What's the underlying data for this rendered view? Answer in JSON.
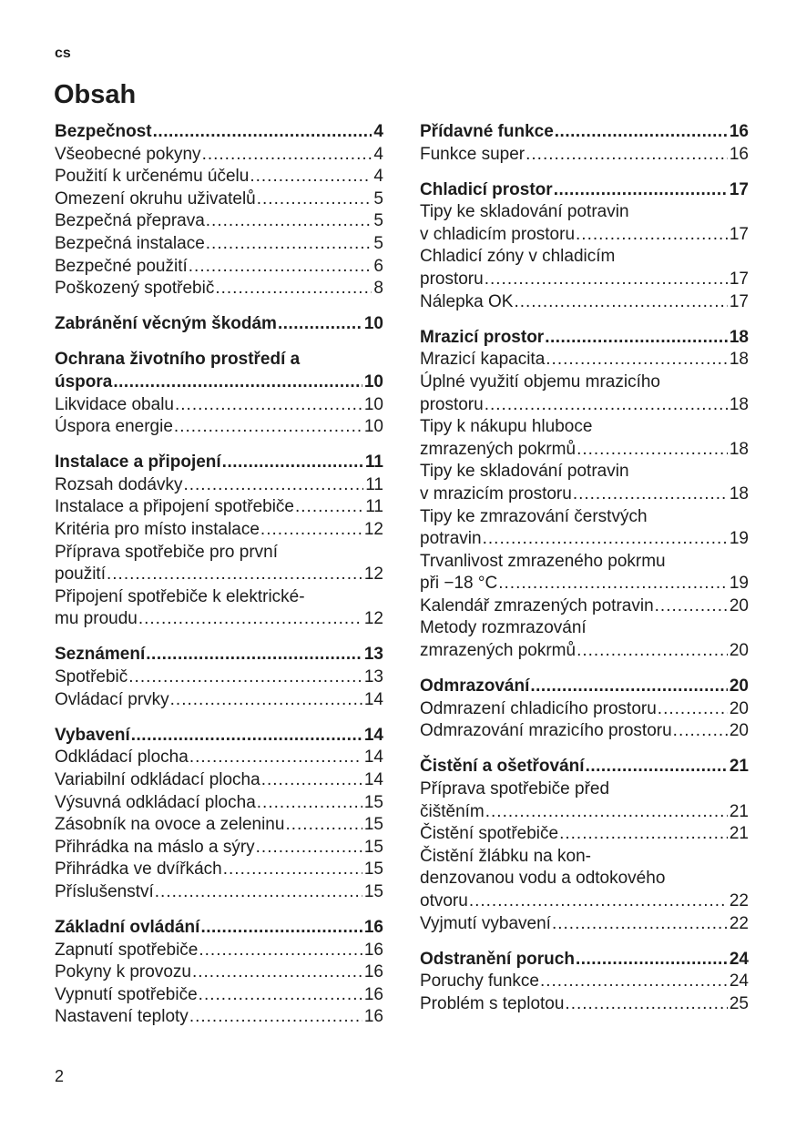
{
  "header": {
    "lang": "cs",
    "title": "Obsah"
  },
  "columns": [
    [
      {
        "heading": {
          "text": "Bezpečnost",
          "page": "4"
        },
        "items": [
          {
            "text": "Všeobecné pokyny",
            "page": "4"
          },
          {
            "text": "Použití k určenému účelu",
            "page": "4"
          },
          {
            "text": "Omezení okruhu uživatelů",
            "page": "5"
          },
          {
            "text": "Bezpečná přeprava",
            "page": "5"
          },
          {
            "text": "Bezpečná instalace",
            "page": "5"
          },
          {
            "text": "Bezpečné použití",
            "page": "6"
          },
          {
            "text": "Poškozený spotřebič",
            "page": "8"
          }
        ]
      },
      {
        "heading": {
          "text": "Zabránění věcným škodám",
          "page": "10"
        },
        "items": []
      },
      {
        "heading": {
          "text": "Ochrana životního prostředí a\núspora",
          "page": "10"
        },
        "items": [
          {
            "text": "Likvidace obalu",
            "page": "10"
          },
          {
            "text": "Úspora energie",
            "page": "10"
          }
        ]
      },
      {
        "heading": {
          "text": "Instalace a připojení",
          "page": "11"
        },
        "items": [
          {
            "text": "Rozsah dodávky",
            "page": "11"
          },
          {
            "text": "Instalace a připojení spotřebiče",
            "page": "11"
          },
          {
            "text": "Kritéria pro místo instalace",
            "page": "12"
          },
          {
            "text": "Příprava spotřebiče pro první\npoužití",
            "page": "12"
          },
          {
            "text": "Připojení spotřebiče k elektrické-\nmu proudu",
            "page": "12"
          }
        ]
      },
      {
        "heading": {
          "text": "Seznámení",
          "page": "13"
        },
        "items": [
          {
            "text": "Spotřebič",
            "page": "13"
          },
          {
            "text": "Ovládací prvky",
            "page": "14"
          }
        ]
      },
      {
        "heading": {
          "text": "Vybavení",
          "page": "14"
        },
        "items": [
          {
            "text": "Odkládací plocha",
            "page": "14"
          },
          {
            "text": "Variabilní odkládací plocha",
            "page": "14"
          },
          {
            "text": "Výsuvná odkládací plocha",
            "page": "15"
          },
          {
            "text": "Zásobník na ovoce a zeleninu",
            "page": "15"
          },
          {
            "text": "Přihrádka na máslo a sýry",
            "page": "15"
          },
          {
            "text": "Přihrádka ve dvířkách",
            "page": "15"
          },
          {
            "text": "Příslušenství",
            "page": "15"
          }
        ]
      },
      {
        "heading": {
          "text": "Základní ovládání",
          "page": "16"
        },
        "items": [
          {
            "text": "Zapnutí spotřebiče",
            "page": "16"
          },
          {
            "text": "Pokyny k provozu",
            "page": "16"
          },
          {
            "text": "Vypnutí spotřebiče",
            "page": "16"
          },
          {
            "text": "Nastavení teploty",
            "page": "16"
          }
        ]
      }
    ],
    [
      {
        "heading": {
          "text": "Přídavné funkce",
          "page": "16"
        },
        "items": [
          {
            "text": "Funkce super",
            "page": "16"
          }
        ]
      },
      {
        "heading": {
          "text": "Chladicí prostor",
          "page": "17"
        },
        "items": [
          {
            "text": "Tipy ke skladování potravin\nv chladicím prostoru",
            "page": "17"
          },
          {
            "text": "Chladicí zóny v chladicím\nprostoru",
            "page": "17"
          },
          {
            "text": "Nálepka OK",
            "page": "17"
          }
        ]
      },
      {
        "heading": {
          "text": "Mrazicí prostor",
          "page": "18"
        },
        "items": [
          {
            "text": "Mrazicí kapacita",
            "page": "18"
          },
          {
            "text": "Úplné využití objemu mrazicího\nprostoru",
            "page": "18"
          },
          {
            "text": "Tipy k nákupu hluboce\nzmrazených pokrmů",
            "page": "18"
          },
          {
            "text": "Tipy ke skladování potravin\nv mrazicím prostoru",
            "page": "18"
          },
          {
            "text": "Tipy ke zmrazování čerstvých\npotravin",
            "page": "19"
          },
          {
            "text": "Trvanlivost zmrazeného pokrmu\npři −18 °C",
            "page": "19"
          },
          {
            "text": "Kalendář zmrazených potravin",
            "page": "20"
          },
          {
            "text": "Metody rozmrazování\nzmrazených pokrmů",
            "page": "20"
          }
        ]
      },
      {
        "heading": {
          "text": "Odmrazování",
          "page": "20"
        },
        "items": [
          {
            "text": "Odmrazení chladicího prostoru",
            "page": "20"
          },
          {
            "text": "Odmrazování mrazicího prostoru",
            "page": "20"
          }
        ]
      },
      {
        "heading": {
          "text": "Čistění a ošetřování",
          "page": "21"
        },
        "items": [
          {
            "text": "Příprava spotřebiče před\nčištěním",
            "page": "21"
          },
          {
            "text": "Čistění spotřebiče",
            "page": "21"
          },
          {
            "text": "Čistění žlábku na kon-\ndenzovanou vodu a odtokového\notvoru",
            "page": "22"
          },
          {
            "text": "Vyjmutí vybavení",
            "page": "22"
          }
        ]
      },
      {
        "heading": {
          "text": "Odstranění poruch",
          "page": "24"
        },
        "items": [
          {
            "text": "Poruchy funkce",
            "page": "24"
          },
          {
            "text": "Problém s teplotou",
            "page": "25"
          }
        ]
      }
    ]
  ],
  "footer": {
    "page_number": "2"
  }
}
